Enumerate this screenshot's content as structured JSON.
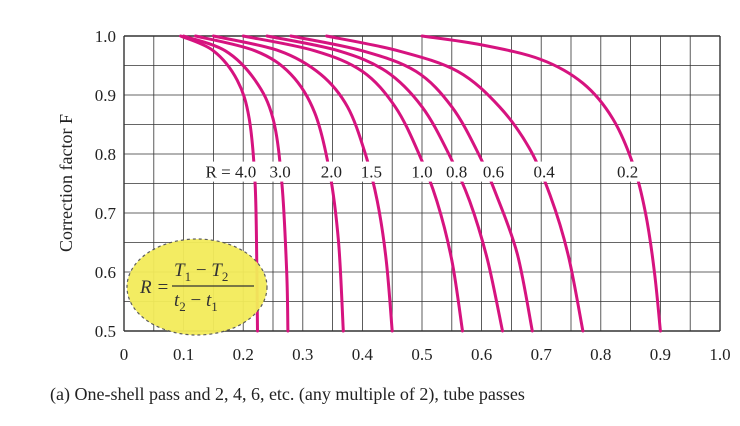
{
  "chart_data": {
    "type": "line",
    "xlim": [
      0,
      1.0
    ],
    "ylim": [
      0.5,
      1.0
    ],
    "x_ticks": [
      "0",
      "0.1",
      "0.2",
      "0.3",
      "0.4",
      "0.5",
      "0.6",
      "0.7",
      "0.8",
      "0.9",
      "1.0"
    ],
    "y_ticks": [
      "1.0",
      "0.9",
      "0.8",
      "0.7",
      "0.6",
      "0.5"
    ],
    "ylabel": "Correction factor F",
    "xlabel": "",
    "caption": "(a) One-shell pass and 2, 4, 6, etc. (any multiple of 2), tube passes",
    "grid": true,
    "line_color": "#d6137f",
    "r_label_prefix": "R = ",
    "formula": {
      "lhs": "R =",
      "num_a": "T",
      "num_a_sub": "1",
      "num_op": " − ",
      "num_b": "T",
      "num_b_sub": "2",
      "den_a": "t",
      "den_a_sub": "2",
      "den_op": " − ",
      "den_b": "t",
      "den_b_sub": "1",
      "highlight_color": "#f3ec5a"
    },
    "series": [
      {
        "name": "4.0",
        "label_x": 0.195,
        "points": [
          [
            0.095,
            1.0
          ],
          [
            0.15,
            0.975
          ],
          [
            0.19,
            0.925
          ],
          [
            0.21,
            0.86
          ],
          [
            0.22,
            0.75
          ],
          [
            0.223,
            0.6
          ],
          [
            0.224,
            0.5
          ]
        ]
      },
      {
        "name": "3.0",
        "label_x": 0.262,
        "points": [
          [
            0.1,
            1.0
          ],
          [
            0.17,
            0.975
          ],
          [
            0.22,
            0.925
          ],
          [
            0.25,
            0.86
          ],
          [
            0.265,
            0.75
          ],
          [
            0.273,
            0.6
          ],
          [
            0.275,
            0.5
          ]
        ]
      },
      {
        "name": "2.0",
        "label_x": 0.348,
        "points": [
          [
            0.12,
            1.0
          ],
          [
            0.22,
            0.975
          ],
          [
            0.28,
            0.935
          ],
          [
            0.32,
            0.87
          ],
          [
            0.345,
            0.77
          ],
          [
            0.36,
            0.65
          ],
          [
            0.368,
            0.5
          ]
        ]
      },
      {
        "name": "1.5",
        "label_x": 0.415,
        "points": [
          [
            0.15,
            1.0
          ],
          [
            0.26,
            0.975
          ],
          [
            0.33,
            0.935
          ],
          [
            0.375,
            0.88
          ],
          [
            0.405,
            0.8
          ],
          [
            0.425,
            0.72
          ],
          [
            0.44,
            0.62
          ],
          [
            0.45,
            0.5
          ]
        ]
      },
      {
        "name": "1.0",
        "label_x": 0.5,
        "points": [
          [
            0.2,
            1.0
          ],
          [
            0.32,
            0.975
          ],
          [
            0.4,
            0.94
          ],
          [
            0.455,
            0.88
          ],
          [
            0.495,
            0.8
          ],
          [
            0.525,
            0.72
          ],
          [
            0.55,
            0.62
          ],
          [
            0.568,
            0.5
          ]
        ]
      },
      {
        "name": "0.8",
        "label_x": 0.558,
        "points": [
          [
            0.24,
            1.0
          ],
          [
            0.36,
            0.975
          ],
          [
            0.44,
            0.94
          ],
          [
            0.5,
            0.88
          ],
          [
            0.545,
            0.8
          ],
          [
            0.58,
            0.72
          ],
          [
            0.61,
            0.62
          ],
          [
            0.635,
            0.5
          ]
        ]
      },
      {
        "name": "0.6",
        "label_x": 0.62,
        "points": [
          [
            0.28,
            1.0
          ],
          [
            0.4,
            0.975
          ],
          [
            0.49,
            0.94
          ],
          [
            0.55,
            0.88
          ],
          [
            0.595,
            0.8
          ],
          [
            0.625,
            0.73
          ],
          [
            0.66,
            0.63
          ],
          [
            0.685,
            0.5
          ]
        ]
      },
      {
        "name": "0.4",
        "label_x": 0.705,
        "points": [
          [
            0.34,
            1.0
          ],
          [
            0.46,
            0.975
          ],
          [
            0.56,
            0.94
          ],
          [
            0.63,
            0.88
          ],
          [
            0.68,
            0.81
          ],
          [
            0.715,
            0.73
          ],
          [
            0.745,
            0.63
          ],
          [
            0.77,
            0.5
          ]
        ]
      },
      {
        "name": "0.2",
        "label_x": 0.845,
        "points": [
          [
            0.5,
            1.0
          ],
          [
            0.6,
            0.985
          ],
          [
            0.7,
            0.96
          ],
          [
            0.77,
            0.92
          ],
          [
            0.82,
            0.86
          ],
          [
            0.855,
            0.78
          ],
          [
            0.875,
            0.7
          ],
          [
            0.89,
            0.6
          ],
          [
            0.9,
            0.5
          ]
        ]
      }
    ]
  }
}
